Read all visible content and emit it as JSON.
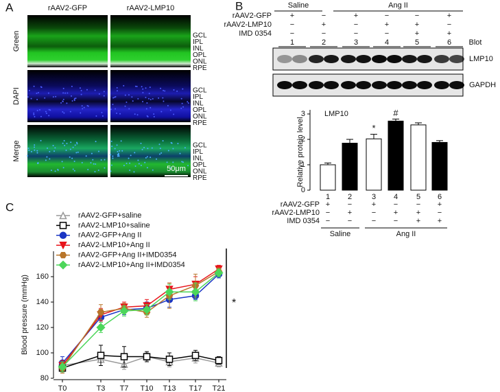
{
  "panel_labels": [
    "A",
    "B",
    "C"
  ],
  "panel_a": {
    "columns": [
      "rAAV2-GFP",
      "rAAV2-LMP10"
    ],
    "rows": [
      "Green",
      "DAPI",
      "Merge"
    ],
    "layers": [
      "GCL",
      "IPL",
      "INL",
      "OPL",
      "ONL",
      "RPE"
    ],
    "scale_bar": "50μm"
  },
  "panel_b": {
    "groups": [
      "Saline",
      "Ang II"
    ],
    "rows": [
      {
        "label": "rAAV2-GFP",
        "signs": [
          "+",
          "−",
          "+",
          "−",
          "−",
          "+"
        ]
      },
      {
        "label": "rAAV2-LMP10",
        "signs": [
          "−",
          "+",
          "−",
          "+",
          "+",
          "−"
        ]
      },
      {
        "label": "IMD 0354",
        "signs": [
          "−",
          "−",
          "−",
          "−",
          "+",
          "+"
        ]
      }
    ],
    "lanes": [
      "1",
      "2",
      "3",
      "4",
      "5",
      "6"
    ],
    "blot_header": "Blot",
    "blots": [
      "LMP10",
      "GAPDH"
    ]
  },
  "chart_data": [
    {
      "type": "bar",
      "title": "LMP10",
      "y_label": "Relative protein level",
      "categories": [
        "1",
        "2",
        "3",
        "4",
        "5",
        "6"
      ],
      "values": [
        1.0,
        1.85,
        2.02,
        2.72,
        2.57,
        1.88
      ],
      "errors": [
        0.07,
        0.15,
        0.18,
        0.08,
        0.08,
        0.07
      ],
      "colors": [
        "#ffffff",
        "#000000",
        "#ffffff",
        "#000000",
        "#ffffff",
        "#000000"
      ],
      "ylim": [
        0,
        3
      ],
      "yticks": [
        0,
        1,
        2,
        3
      ],
      "annotations": [
        {
          "text": "*",
          "category": "3"
        },
        {
          "text": "#",
          "category": "4"
        }
      ],
      "treatments": [
        {
          "label": "rAAV2-GFP",
          "signs": [
            "+",
            "−",
            "+",
            "−",
            "−",
            "+"
          ]
        },
        {
          "label": "rAAV2-LMP10",
          "signs": [
            "−",
            "+",
            "−",
            "+",
            "+",
            "−"
          ]
        },
        {
          "label": "IMD 0354",
          "signs": [
            "−",
            "−",
            "−",
            "−",
            "+",
            "+"
          ]
        }
      ],
      "groups": [
        "Saline",
        "Ang II"
      ]
    },
    {
      "type": "line",
      "y_label": "Blood pressure (mmHg)",
      "categories": [
        "T0",
        "T3",
        "T7",
        "T10",
        "T13",
        "T17",
        "T21"
      ],
      "ylim": [
        80,
        180
      ],
      "yticks": [
        80,
        100,
        120,
        140,
        160
      ],
      "series": [
        {
          "name": "rAAV2-GFP+saline",
          "color": "#999999",
          "marker": "triangle",
          "values": [
            90,
            95,
            91,
            97,
            93,
            96,
            92
          ],
          "errors": [
            4,
            5,
            4,
            3,
            4,
            4,
            3
          ]
        },
        {
          "name": "rAAV2-LMP10+saline",
          "color": "#000000",
          "marker": "square",
          "values": [
            88,
            98,
            97,
            97,
            95,
            98,
            94
          ],
          "errors": [
            3,
            8,
            8,
            4,
            5,
            4,
            3
          ]
        },
        {
          "name": "rAAV2-GFP+Ang II",
          "color": "#1a35c4",
          "marker": "circle",
          "values": [
            92,
            128,
            134,
            135,
            142,
            145,
            162
          ],
          "errors": [
            5,
            6,
            4,
            5,
            6,
            3,
            3
          ]
        },
        {
          "name": "rAAV2-LMP10+Ang II",
          "color": "#e8141b",
          "marker": "triangle-down",
          "values": [
            90,
            130,
            136,
            137,
            150,
            154,
            166
          ],
          "errors": [
            4,
            5,
            4,
            5,
            5,
            6,
            3
          ]
        },
        {
          "name": "rAAV2-GFP+Ang II+IMD0354",
          "color": "#b8752a",
          "marker": "hexagon",
          "values": [
            88,
            132,
            135,
            132,
            145,
            153,
            164
          ],
          "errors": [
            4,
            6,
            4,
            4,
            10,
            9,
            3
          ]
        },
        {
          "name": "rAAV2-LMP10+Ang II+IMD0354",
          "color": "#4cd65a",
          "marker": "diamond",
          "values": [
            89,
            120,
            133,
            134,
            148,
            148,
            163
          ],
          "errors": [
            4,
            4,
            4,
            4,
            6,
            7,
            3
          ]
        }
      ],
      "annotations": [
        {
          "text": "*"
        }
      ]
    }
  ]
}
